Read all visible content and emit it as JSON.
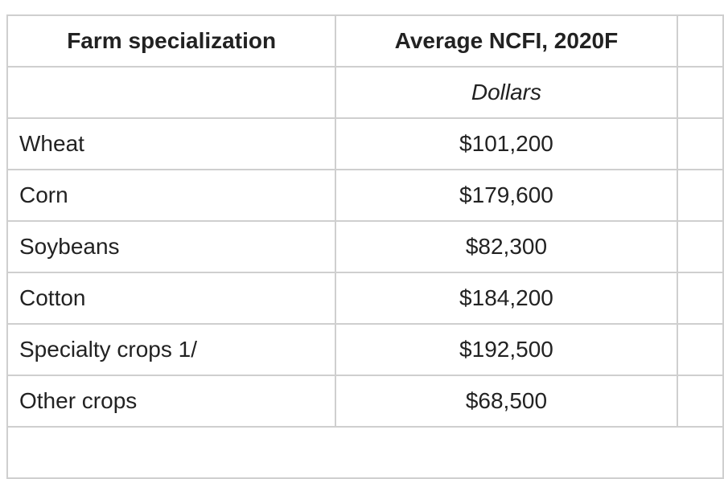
{
  "table": {
    "headers": [
      "Farm specialization",
      "Average NCFI, 2020F"
    ],
    "units": "Dollars",
    "rows": [
      {
        "specialization": "Wheat",
        "value": "$101,200"
      },
      {
        "specialization": "Corn",
        "value": "$179,600"
      },
      {
        "specialization": "Soybeans",
        "value": "$82,300"
      },
      {
        "specialization": "Cotton",
        "value": "$184,200"
      },
      {
        "specialization": "Specialty crops 1/",
        "value": "$192,500"
      },
      {
        "specialization": "Other crops",
        "value": "$68,500"
      }
    ]
  }
}
